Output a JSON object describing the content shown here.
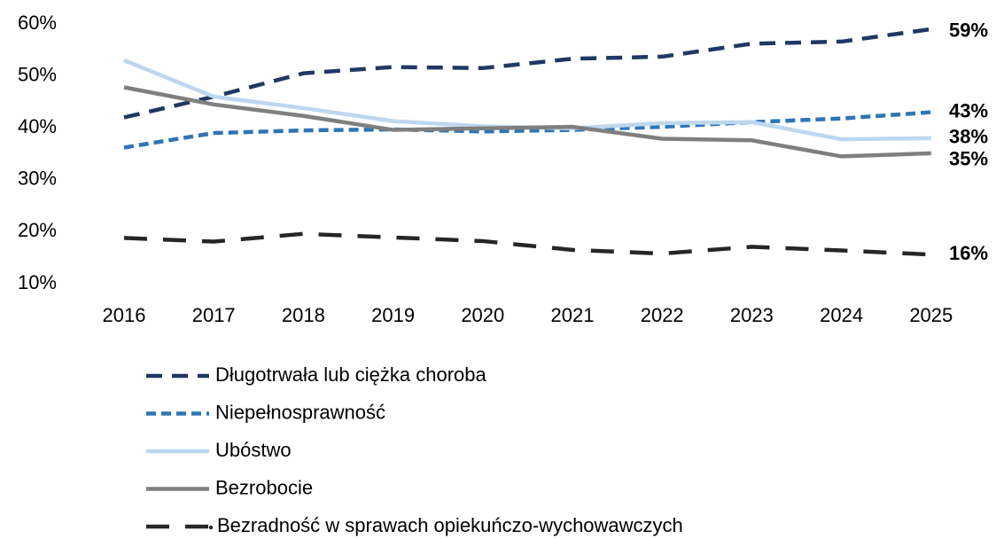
{
  "chart_data": {
    "type": "line",
    "categories": [
      "2016",
      "2017",
      "2018",
      "2019",
      "2020",
      "2021",
      "2022",
      "2023",
      "2024",
      "2025"
    ],
    "ylim": [
      10,
      60
    ],
    "yticks": [
      {
        "value": 10,
        "label": "10%"
      },
      {
        "value": 20,
        "label": "20%"
      },
      {
        "value": 30,
        "label": "30%"
      },
      {
        "value": 40,
        "label": "40%"
      },
      {
        "value": 50,
        "label": "50%"
      },
      {
        "value": 60,
        "label": "60%"
      }
    ],
    "legend": "bottom",
    "series": [
      {
        "name": "Długotrwała lub ciężka choroba",
        "color": "#1f3864",
        "dash": "dashed",
        "values": [
          42,
          46,
          50.5,
          51.7,
          51.5,
          53.3,
          53.7,
          56.2,
          56.6,
          59
        ],
        "value_labels": [
          null,
          null,
          null,
          null,
          null,
          null,
          null,
          null,
          null,
          "59%"
        ]
      },
      {
        "name": "Niepełnosprawność",
        "color": "#2e75b6",
        "dash": "short-dashed",
        "values": [
          36.2,
          39,
          39.5,
          39.7,
          39.3,
          39.6,
          40.2,
          41.1,
          41.8,
          43
        ],
        "value_labels": [
          null,
          null,
          null,
          null,
          null,
          null,
          null,
          null,
          null,
          "43%"
        ]
      },
      {
        "name": "Ubóstwo",
        "color": "#bdd7ee",
        "dash": "solid",
        "values": [
          53,
          46,
          43.8,
          41.3,
          40.3,
          39.9,
          40.9,
          41.1,
          37.8,
          38
        ],
        "value_labels": [
          null,
          null,
          null,
          null,
          null,
          null,
          null,
          null,
          null,
          "38%"
        ]
      },
      {
        "name": "Bezrobocie",
        "color": "#7f7f7f",
        "dash": "solid",
        "values": [
          47.8,
          44.5,
          42.3,
          39.6,
          39.9,
          40.2,
          37.9,
          37.6,
          34.5,
          35.1
        ],
        "value_labels": [
          null,
          null,
          null,
          null,
          null,
          null,
          null,
          null,
          null,
          "35%"
        ]
      },
      {
        "name": "Bezradność w sprawach opiekuńczo-wychowawczych",
        "color": "#262626",
        "dash": "long-dashed",
        "values": [
          18.8,
          18.1,
          19.6,
          18.9,
          18.2,
          16.5,
          15.8,
          17.1,
          16.4,
          15.6
        ],
        "value_labels": [
          null,
          null,
          null,
          null,
          null,
          null,
          null,
          null,
          null,
          "16%"
        ]
      }
    ]
  }
}
